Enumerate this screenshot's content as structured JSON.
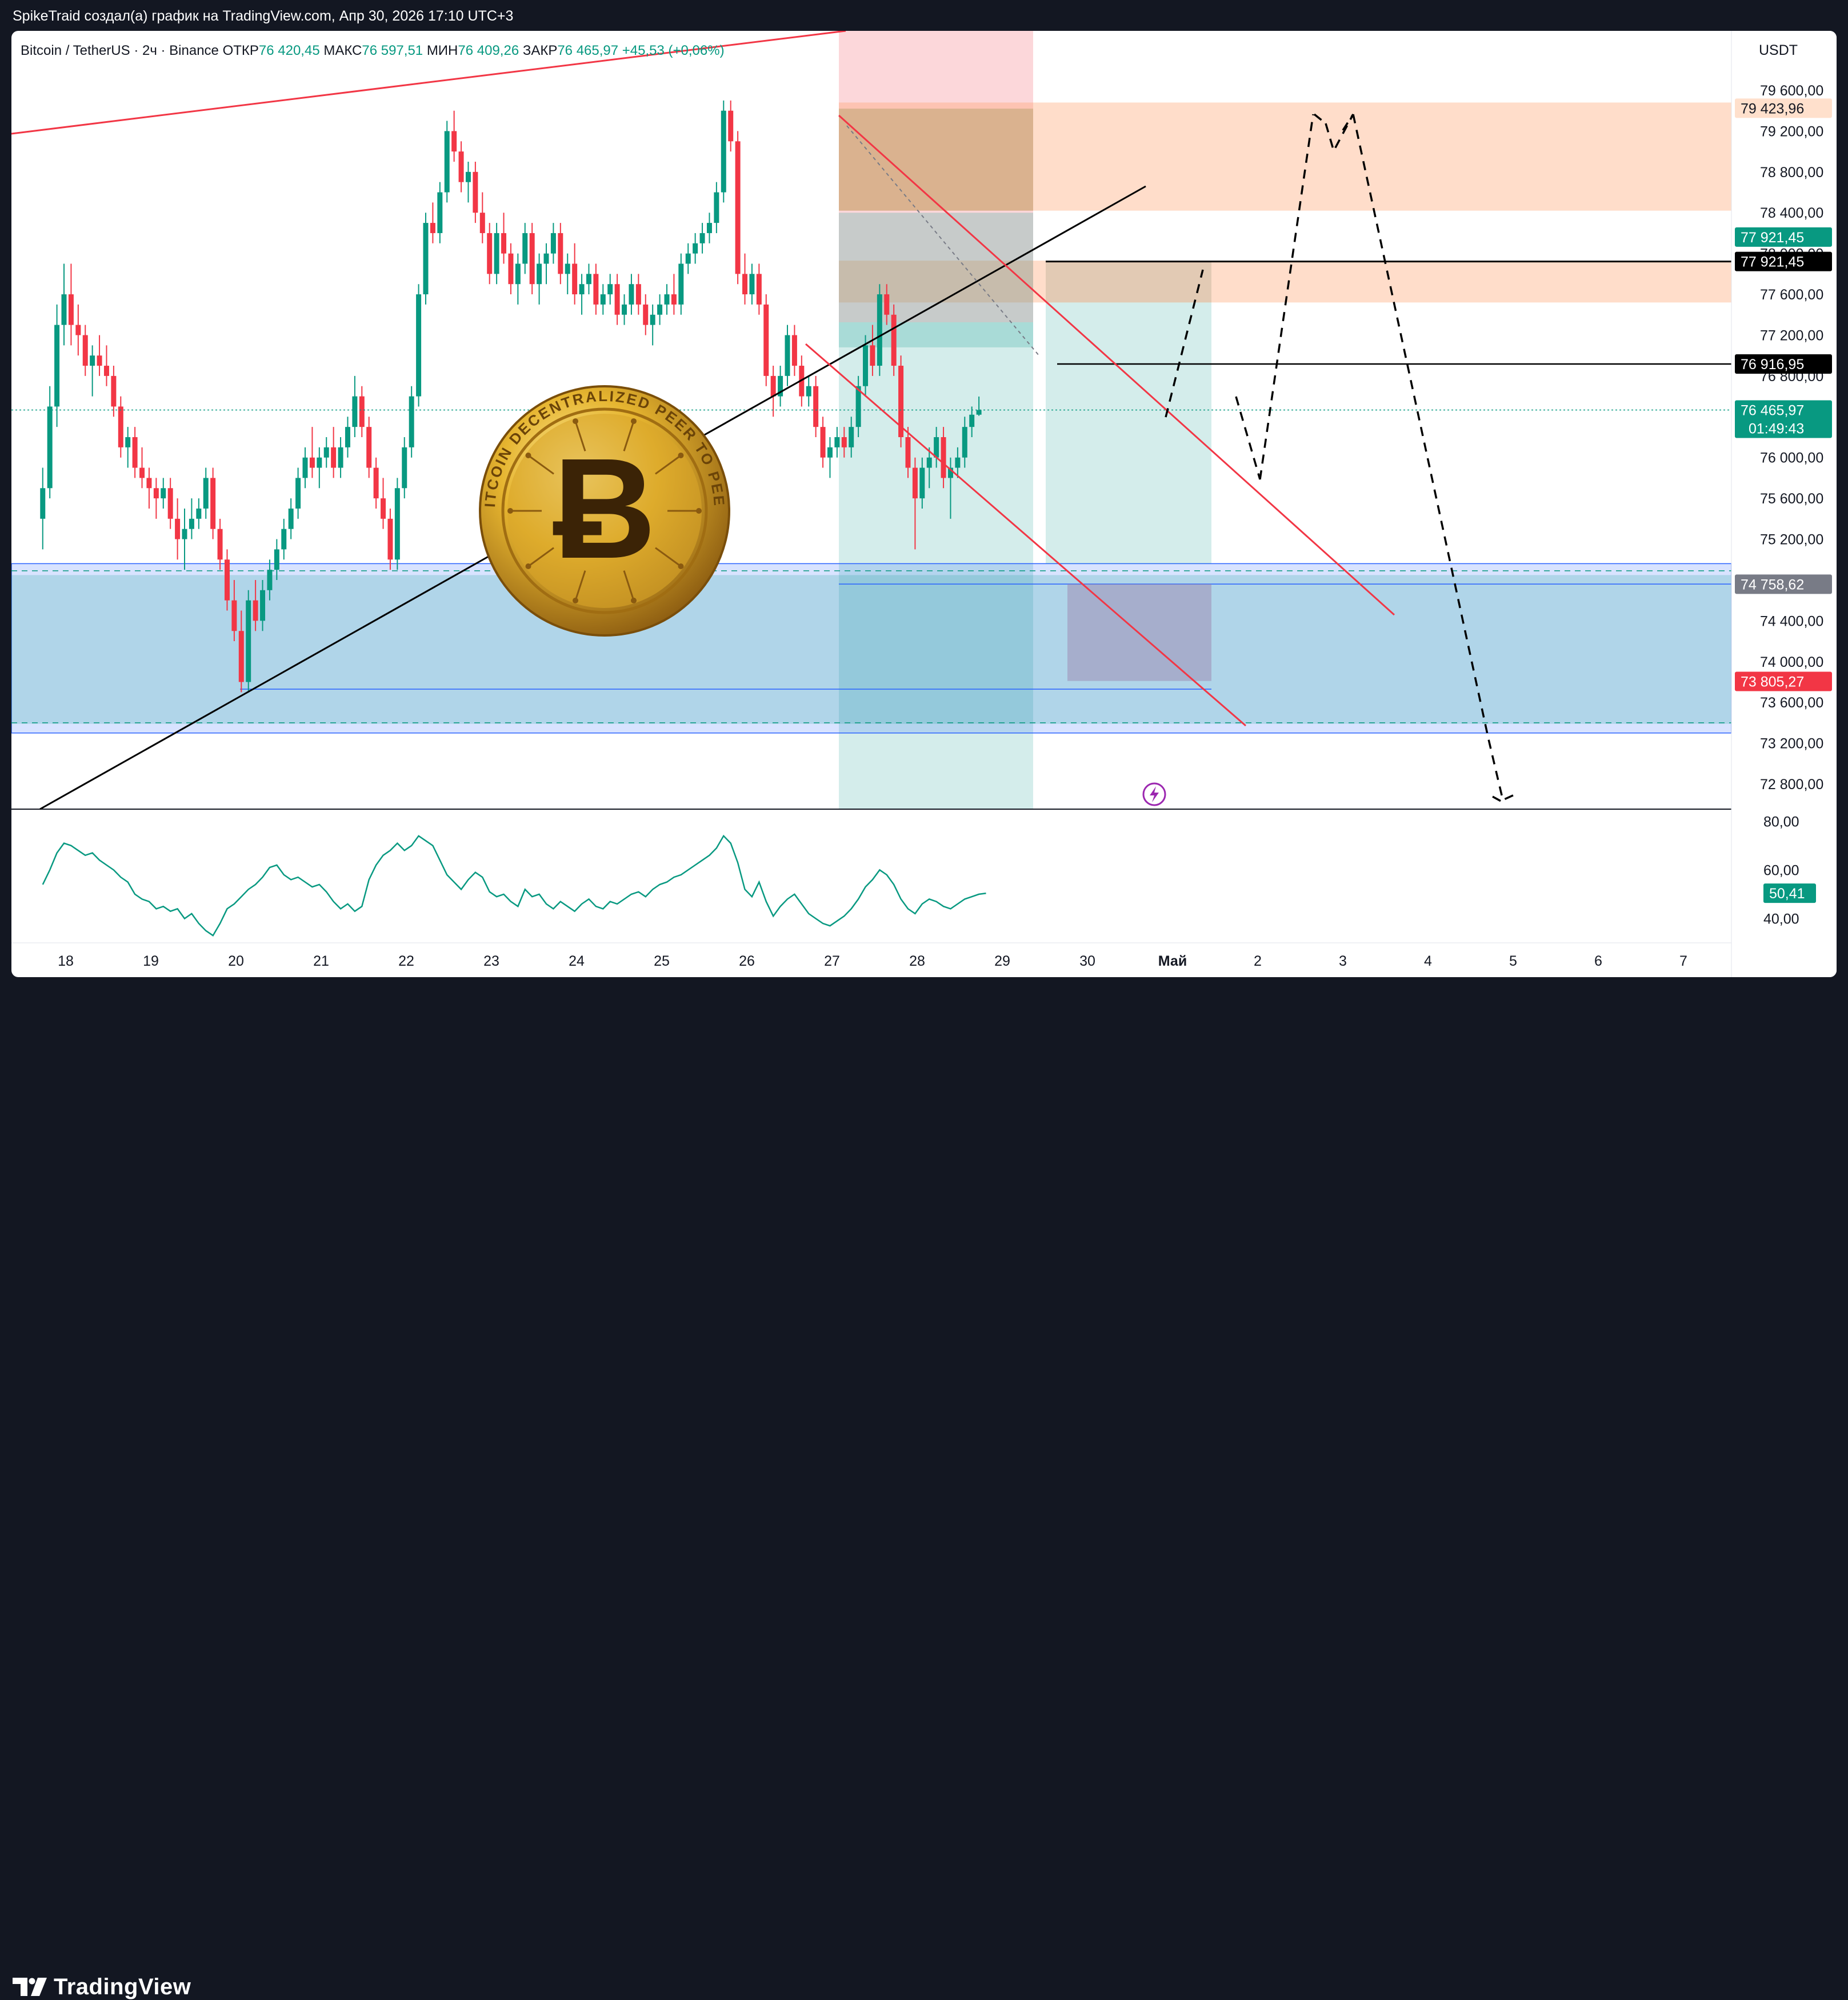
{
  "header": {
    "caption": "SpikeTraid создал(а) график на TradingView.com, Апр 30, 2026 17:10 UTC+3"
  },
  "legend": {
    "symbol": "Bitcoin / TetherUS · 2ч · Binance",
    "open_label": "ОТКР",
    "open": "76 420,45",
    "high_label": "МАКС",
    "high": "76 597,51",
    "low_label": "МИН",
    "low": "76 409,26",
    "close_label": "ЗАКР",
    "close": "76 465,97",
    "change": "+45,53 (+0,06%)"
  },
  "currency": "USDT",
  "brand": {
    "name": "TradingView"
  },
  "badges": {
    "top_zone": "79 423,96",
    "green_1": "77 921,45",
    "black_1": "77 921,45",
    "level_line": "76 916,95",
    "price": "76 465,97",
    "countdown": "01:49:43",
    "gray": "74 758,62",
    "red": "73 805,27",
    "rsi": "50,41"
  },
  "colors": {
    "bull": "#089981",
    "bear": "#f23645",
    "price_badge": "#089981",
    "red_badge": "#f23645",
    "gray_badge": "#787b86",
    "zone_orange": "#ff9e66",
    "zone_blue": "#2962ff",
    "zone_teal": "#26a69a",
    "trend_red": "#f23645",
    "rsi_line": "#089981"
  },
  "logo": {
    "text": "BITCOIN DECENTRALIZED PEER TO PEER",
    "icon": "bitcoin-coin-icon"
  },
  "chart_data": {
    "type": "candlestick",
    "symbol": "BTCUSDT",
    "timeframe": "2h",
    "ylim": [
      72600,
      80000
    ],
    "y_ticks": [
      "79 600,00",
      "79 200,00",
      "78 800,00",
      "78 400,00",
      "78 000,00",
      "77 600,00",
      "77 200,00",
      "76 800,00",
      "76 400,00",
      "76 000,00",
      "75 600,00",
      "75 200,00",
      "74 800,00",
      "74 400,00",
      "74 000,00",
      "73 600,00",
      "73 200,00",
      "72 800,00"
    ],
    "x_ticks": [
      "18",
      "19",
      "20",
      "21",
      "22",
      "23",
      "24",
      "25",
      "26",
      "27",
      "28",
      "29",
      "30",
      "Май",
      "2",
      "3",
      "4",
      "5",
      "6",
      "7"
    ],
    "last_price": 76465.97,
    "candles": {
      "start_day": 17.73,
      "step_days": 0.0833,
      "rows": [
        [
          75400,
          75900,
          75100,
          75700
        ],
        [
          75700,
          76700,
          75600,
          76500
        ],
        [
          76500,
          77500,
          76300,
          77300
        ],
        [
          77300,
          77900,
          77100,
          77600
        ],
        [
          77600,
          77900,
          77100,
          77300
        ],
        [
          77300,
          77500,
          77000,
          77200
        ],
        [
          77200,
          77300,
          76800,
          76900
        ],
        [
          76900,
          77100,
          76600,
          77000
        ],
        [
          77000,
          77200,
          76800,
          76900
        ],
        [
          76900,
          77100,
          76700,
          76800
        ],
        [
          76800,
          76900,
          76400,
          76500
        ],
        [
          76500,
          76600,
          76000,
          76100
        ],
        [
          76100,
          76300,
          75900,
          76200
        ],
        [
          76200,
          76300,
          75800,
          75900
        ],
        [
          75900,
          76100,
          75700,
          75800
        ],
        [
          75800,
          75900,
          75500,
          75700
        ],
        [
          75700,
          75800,
          75400,
          75600
        ],
        [
          75600,
          75800,
          75500,
          75700
        ],
        [
          75700,
          75800,
          75300,
          75400
        ],
        [
          75400,
          75600,
          75000,
          75200
        ],
        [
          75200,
          75500,
          74900,
          75300
        ],
        [
          75300,
          75600,
          75200,
          75400
        ],
        [
          75400,
          75600,
          75300,
          75500
        ],
        [
          75500,
          75900,
          75400,
          75800
        ],
        [
          75800,
          75900,
          75200,
          75300
        ],
        [
          75300,
          75400,
          74900,
          75000
        ],
        [
          75000,
          75100,
          74500,
          74600
        ],
        [
          74600,
          74800,
          74200,
          74300
        ],
        [
          74300,
          74500,
          73700,
          73800
        ],
        [
          73800,
          74700,
          73700,
          74600
        ],
        [
          74600,
          74800,
          74300,
          74400
        ],
        [
          74400,
          74800,
          74300,
          74700
        ],
        [
          74700,
          75000,
          74600,
          74900
        ],
        [
          74900,
          75200,
          74800,
          75100
        ],
        [
          75100,
          75400,
          75000,
          75300
        ],
        [
          75300,
          75600,
          75200,
          75500
        ],
        [
          75500,
          75900,
          75400,
          75800
        ],
        [
          75800,
          76100,
          75700,
          76000
        ],
        [
          76000,
          76300,
          75800,
          75900
        ],
        [
          75900,
          76100,
          75700,
          76000
        ],
        [
          76000,
          76200,
          75900,
          76100
        ],
        [
          76100,
          76300,
          75800,
          75900
        ],
        [
          75900,
          76200,
          75800,
          76100
        ],
        [
          76100,
          76400,
          76000,
          76300
        ],
        [
          76300,
          76800,
          76200,
          76600
        ],
        [
          76600,
          76700,
          76200,
          76300
        ],
        [
          76300,
          76400,
          75800,
          75900
        ],
        [
          75900,
          76000,
          75500,
          75600
        ],
        [
          75600,
          75800,
          75300,
          75400
        ],
        [
          75400,
          75500,
          74900,
          75000
        ],
        [
          75000,
          75800,
          74900,
          75700
        ],
        [
          75700,
          76200,
          75600,
          76100
        ],
        [
          76100,
          76700,
          76000,
          76600
        ],
        [
          76600,
          77700,
          76500,
          77600
        ],
        [
          77600,
          78400,
          77500,
          78300
        ],
        [
          78300,
          78500,
          78100,
          78200
        ],
        [
          78200,
          78700,
          78100,
          78600
        ],
        [
          78600,
          79300,
          78500,
          79200
        ],
        [
          79200,
          79400,
          78900,
          79000
        ],
        [
          79000,
          79100,
          78600,
          78700
        ],
        [
          78700,
          78900,
          78500,
          78800
        ],
        [
          78800,
          78900,
          78300,
          78400
        ],
        [
          78400,
          78600,
          78100,
          78200
        ],
        [
          78200,
          78300,
          77700,
          77800
        ],
        [
          77800,
          78300,
          77700,
          78200
        ],
        [
          78200,
          78400,
          77900,
          78000
        ],
        [
          78000,
          78100,
          77600,
          77700
        ],
        [
          77700,
          78000,
          77500,
          77900
        ],
        [
          77900,
          78300,
          77800,
          78200
        ],
        [
          78200,
          78300,
          77600,
          77700
        ],
        [
          77700,
          78000,
          77500,
          77900
        ],
        [
          77900,
          78100,
          77700,
          78000
        ],
        [
          78000,
          78300,
          77900,
          78200
        ],
        [
          78200,
          78300,
          77700,
          77800
        ],
        [
          77800,
          78000,
          77600,
          77900
        ],
        [
          77900,
          78100,
          77500,
          77600
        ],
        [
          77600,
          77800,
          77400,
          77700
        ],
        [
          77700,
          77900,
          77600,
          77800
        ],
        [
          77800,
          77900,
          77400,
          77500
        ],
        [
          77500,
          77700,
          77400,
          77600
        ],
        [
          77600,
          77800,
          77500,
          77700
        ],
        [
          77700,
          77800,
          77300,
          77400
        ],
        [
          77400,
          77600,
          77300,
          77500
        ],
        [
          77500,
          77800,
          77400,
          77700
        ],
        [
          77700,
          77800,
          77400,
          77500
        ],
        [
          77500,
          77600,
          77200,
          77300
        ],
        [
          77300,
          77500,
          77100,
          77400
        ],
        [
          77400,
          77600,
          77300,
          77500
        ],
        [
          77500,
          77700,
          77400,
          77600
        ],
        [
          77600,
          77800,
          77400,
          77500
        ],
        [
          77500,
          78000,
          77400,
          77900
        ],
        [
          77900,
          78100,
          77800,
          78000
        ],
        [
          78000,
          78200,
          77900,
          78100
        ],
        [
          78100,
          78300,
          78000,
          78200
        ],
        [
          78200,
          78400,
          78100,
          78300
        ],
        [
          78300,
          78700,
          78200,
          78600
        ],
        [
          78600,
          79500,
          78500,
          79400
        ],
        [
          79400,
          79500,
          79000,
          79100
        ],
        [
          79100,
          79200,
          77700,
          77800
        ],
        [
          77800,
          78000,
          77500,
          77600
        ],
        [
          77600,
          77900,
          77500,
          77800
        ],
        [
          77800,
          77900,
          77400,
          77500
        ],
        [
          77500,
          77600,
          76700,
          76800
        ],
        [
          76800,
          76900,
          76400,
          76600
        ],
        [
          76600,
          76900,
          76500,
          76800
        ],
        [
          76800,
          77300,
          76700,
          77200
        ],
        [
          77200,
          77300,
          76800,
          76900
        ],
        [
          76900,
          77000,
          76500,
          76600
        ],
        [
          76600,
          76800,
          76500,
          76700
        ],
        [
          76700,
          76800,
          76200,
          76300
        ],
        [
          76300,
          76400,
          75900,
          76000
        ],
        [
          76000,
          76200,
          75800,
          76100
        ],
        [
          76100,
          76300,
          76000,
          76200
        ],
        [
          76200,
          76300,
          76000,
          76100
        ],
        [
          76100,
          76400,
          76000,
          76300
        ],
        [
          76300,
          76800,
          76200,
          76700
        ],
        [
          76700,
          77200,
          76600,
          77100
        ],
        [
          77100,
          77300,
          76800,
          76900
        ],
        [
          76900,
          77700,
          76800,
          77600
        ],
        [
          77600,
          77700,
          77300,
          77400
        ],
        [
          77400,
          77500,
          76800,
          76900
        ],
        [
          76900,
          77000,
          76100,
          76200
        ],
        [
          76200,
          76300,
          75800,
          75900
        ],
        [
          75900,
          76000,
          75100,
          75600
        ],
        [
          75600,
          76000,
          75500,
          75900
        ],
        [
          75900,
          76100,
          75700,
          76000
        ],
        [
          76000,
          76300,
          75900,
          76200
        ],
        [
          76200,
          76300,
          75700,
          75800
        ],
        [
          75800,
          76000,
          75400,
          75900
        ],
        [
          75900,
          76100,
          75800,
          76000
        ],
        [
          76000,
          76400,
          75900,
          76300
        ],
        [
          76300,
          76500,
          76200,
          76420
        ],
        [
          76420,
          76598,
          76409,
          76466
        ]
      ]
    },
    "horizontal_lines": [
      {
        "price": 77921.45,
        "color": "#000000"
      },
      {
        "price": 76916.95,
        "color": "#000000"
      },
      {
        "price": 76465.97,
        "color": "#089981",
        "style": "dotted"
      }
    ],
    "zones": [
      {
        "name": "resistance-upper",
        "from": 78420,
        "to": 79480,
        "color": "#ff9e66"
      },
      {
        "name": "resistance-lower",
        "from": 77520,
        "to": 77930,
        "color": "#ff9e66"
      },
      {
        "name": "support",
        "from": 73300,
        "to": 74960,
        "color": "#2962ff"
      }
    ],
    "rsi": {
      "ylim": [
        30,
        85
      ],
      "y_ticks": [
        "80,00",
        "60,00",
        "40,00"
      ],
      "last": 50.41,
      "values": [
        54,
        60,
        67,
        71,
        70,
        68,
        66,
        67,
        64,
        62,
        60,
        57,
        55,
        50,
        48,
        47,
        44,
        45,
        43,
        44,
        40,
        42,
        38,
        35,
        33,
        38,
        44,
        46,
        49,
        52,
        54,
        57,
        61,
        62,
        58,
        56,
        57,
        55,
        53,
        54,
        51,
        47,
        44,
        46,
        43,
        45,
        56,
        62,
        66,
        68,
        71,
        68,
        70,
        74,
        72,
        70,
        64,
        58,
        55,
        52,
        56,
        59,
        57,
        51,
        49,
        50,
        47,
        45,
        52,
        49,
        50,
        46,
        44,
        47,
        45,
        43,
        46,
        48,
        45,
        44,
        47,
        46,
        48,
        50,
        51,
        49,
        52,
        54,
        55,
        57,
        58,
        60,
        62,
        64,
        66,
        69,
        74,
        71,
        63,
        52,
        49,
        55,
        47,
        41,
        45,
        48,
        50,
        46,
        42,
        40,
        38,
        37,
        39,
        41,
        44,
        48,
        53,
        56,
        60,
        58,
        54,
        48,
        44,
        42,
        46,
        48,
        47,
        45,
        44,
        46,
        48,
        49,
        50,
        50.41
      ]
    }
  }
}
